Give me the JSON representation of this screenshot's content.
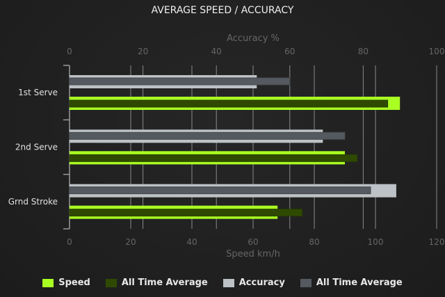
{
  "chart_data": {
    "type": "bar",
    "orientation": "horizontal",
    "title": "AVERAGE SPEED / ACCURACY",
    "categories": [
      "1st Serve",
      "2nd Serve",
      "Grnd Stroke"
    ],
    "x_top": {
      "label": "Accuracy %",
      "range": [
        0,
        100
      ],
      "ticks": [
        0,
        20,
        40,
        60,
        80,
        100
      ]
    },
    "x_bottom": {
      "label": "Speed km/h",
      "range": [
        0,
        120
      ],
      "ticks": [
        0,
        20,
        40,
        60,
        80,
        100,
        120
      ]
    },
    "grid": true,
    "legend_position": "bottom",
    "series": [
      {
        "name": "Speed",
        "axis": "bottom",
        "color": "#aaff22",
        "values": [
          108,
          90,
          68
        ]
      },
      {
        "name": "All Time Average",
        "axis": "bottom",
        "color": "#2f4a00",
        "values": [
          104,
          94,
          76
        ]
      },
      {
        "name": "Accuracy",
        "axis": "top",
        "color": "#bcc2c6",
        "values": [
          51,
          69,
          89
        ]
      },
      {
        "name": "All Time Average",
        "axis": "top",
        "color": "#555a60",
        "values": [
          60,
          75,
          82
        ]
      }
    ]
  }
}
